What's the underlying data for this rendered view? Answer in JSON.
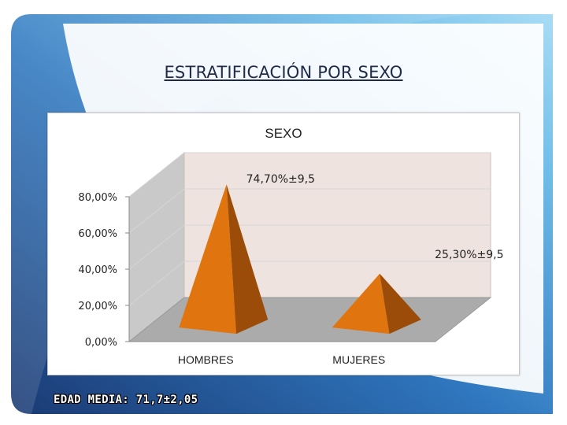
{
  "slide": {
    "title": "ESTRATIFICACIÓN POR SEXO",
    "footer": "EDAD MEDIA: 71,7±2,05"
  },
  "chart_data": {
    "type": "bar",
    "shape": "pyramid-3d",
    "title": "SEXO",
    "categories": [
      "HOMBRES",
      "MUJERES"
    ],
    "values": [
      74.7,
      25.3
    ],
    "data_labels": [
      "74,70%±9,5",
      "25,30%±9,5"
    ],
    "ylim": [
      0,
      80
    ],
    "yticks": [
      0,
      20,
      40,
      60,
      80
    ],
    "ytick_labels": [
      "0,00%",
      "20,00%",
      "40,00%",
      "60,00%",
      "80,00%"
    ],
    "grid": true,
    "legend": "none",
    "colors": {
      "front": "#e07510",
      "side": "#9a4c08",
      "wall": "#efe3df",
      "floor": "#ababab",
      "wall_side": "#c9c9c9"
    }
  },
  "theme": {
    "bg_dark": "#1f3e78",
    "bg_light": "#9fd3f3"
  }
}
